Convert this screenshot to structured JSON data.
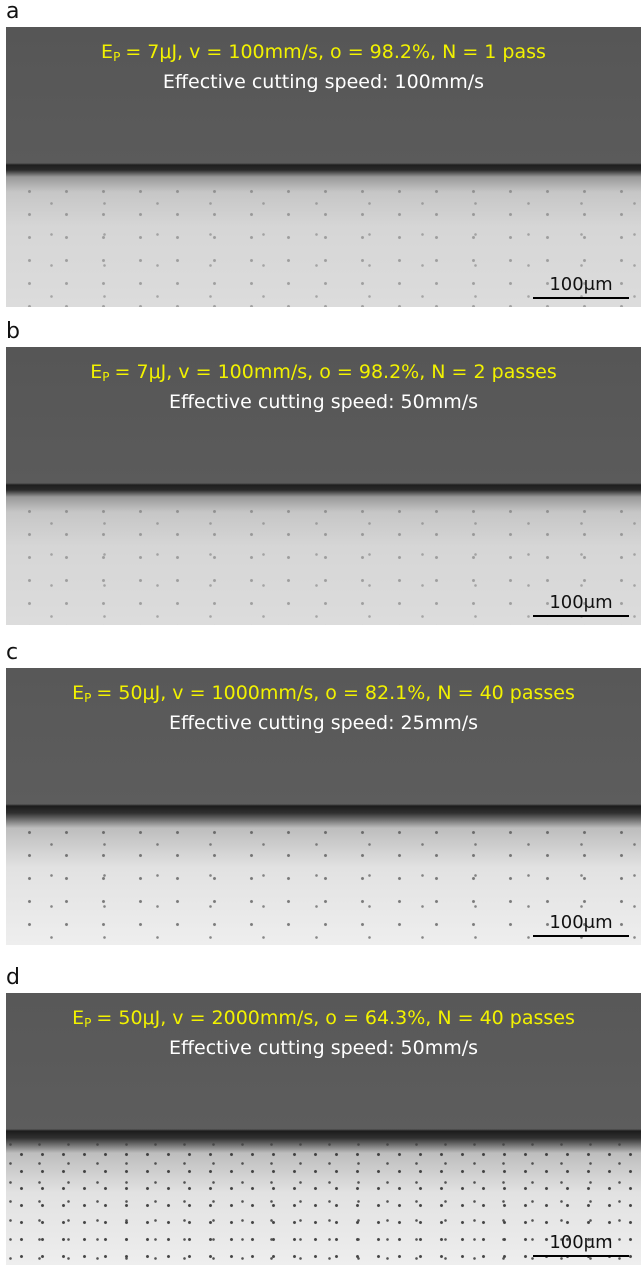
{
  "panels": [
    {
      "label": "a",
      "energy_symbol": "E",
      "energy_subscript": "P",
      "params": "= 7μJ, v = 100mm/s, o = 98.2%, N = 1 pass",
      "speed": "Effective cutting speed:  100mm/s",
      "scale_bar": "100μm"
    },
    {
      "label": "b",
      "energy_symbol": "E",
      "energy_subscript": "P",
      "params": "= 7μJ, v = 100mm/s, o = 98.2%, N = 2 passes",
      "speed": "Effective cutting speed:  50mm/s",
      "scale_bar": "100μm"
    },
    {
      "label": "c",
      "energy_symbol": "E",
      "energy_subscript": "P",
      "params": "= 50μJ, v = 1000mm/s, o = 82.1%, N = 40 passes",
      "speed": "Effective cutting speed:  25mm/s",
      "scale_bar": "100μm"
    },
    {
      "label": "d",
      "energy_symbol": "E",
      "energy_subscript": "P",
      "params": "= 50μJ, v = 2000mm/s, o = 64.3%, N = 40 passes",
      "speed": "Effective cutting speed:  50mm/s",
      "scale_bar": "100μm"
    }
  ]
}
